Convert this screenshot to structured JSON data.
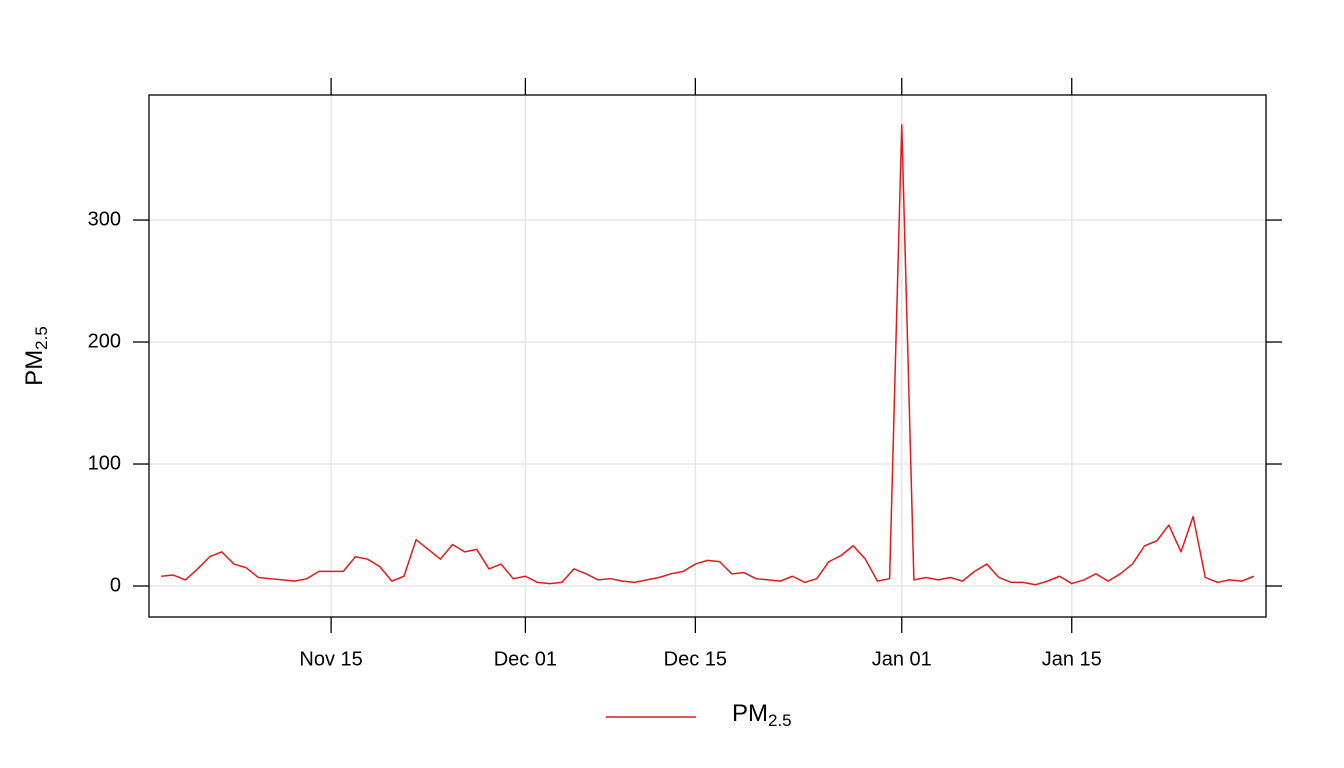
{
  "chart_data": {
    "type": "line",
    "ylabel": {
      "text": "PM",
      "subscript": "2.5"
    },
    "x": [
      "Nov 01",
      "Nov 02",
      "Nov 03",
      "Nov 04",
      "Nov 05",
      "Nov 06",
      "Nov 07",
      "Nov 08",
      "Nov 09",
      "Nov 10",
      "Nov 11",
      "Nov 12",
      "Nov 13",
      "Nov 14",
      "Nov 15",
      "Nov 16",
      "Nov 17",
      "Nov 18",
      "Nov 19",
      "Nov 20",
      "Nov 21",
      "Nov 22",
      "Nov 23",
      "Nov 24",
      "Nov 25",
      "Nov 26",
      "Nov 27",
      "Nov 28",
      "Nov 29",
      "Nov 30",
      "Dec 01",
      "Dec 02",
      "Dec 03",
      "Dec 04",
      "Dec 05",
      "Dec 06",
      "Dec 07",
      "Dec 08",
      "Dec 09",
      "Dec 10",
      "Dec 11",
      "Dec 12",
      "Dec 13",
      "Dec 14",
      "Dec 15",
      "Dec 16",
      "Dec 17",
      "Dec 18",
      "Dec 19",
      "Dec 20",
      "Dec 21",
      "Dec 22",
      "Dec 23",
      "Dec 24",
      "Dec 25",
      "Dec 26",
      "Dec 27",
      "Dec 28",
      "Dec 29",
      "Dec 30",
      "Dec 31",
      "Jan 01",
      "Jan 02",
      "Jan 03",
      "Jan 04",
      "Jan 05",
      "Jan 06",
      "Jan 07",
      "Jan 08",
      "Jan 09",
      "Jan 10",
      "Jan 11",
      "Jan 12",
      "Jan 13",
      "Jan 14",
      "Jan 15",
      "Jan 16",
      "Jan 17",
      "Jan 18",
      "Jan 19",
      "Jan 20",
      "Jan 21",
      "Jan 22",
      "Jan 23",
      "Jan 24",
      "Jan 25",
      "Jan 26",
      "Jan 27",
      "Jan 28",
      "Jan 29",
      "Jan 30"
    ],
    "series": [
      {
        "name": {
          "text": "PM",
          "subscript": "2.5"
        },
        "color": "#e31a1c",
        "values": [
          8,
          9,
          5,
          14,
          24,
          28,
          18,
          15,
          7,
          6,
          5,
          4,
          6,
          12,
          12,
          12,
          24,
          22,
          16,
          4,
          8,
          38,
          30,
          22,
          34,
          28,
          30,
          14,
          18,
          6,
          8,
          3,
          2,
          3,
          14,
          10,
          5,
          6,
          4,
          3,
          5,
          7,
          10,
          12,
          18,
          21,
          20,
          10,
          11,
          6,
          5,
          4,
          8,
          3,
          6,
          20,
          25,
          33,
          22,
          4,
          6,
          378,
          5,
          7,
          5,
          7,
          4,
          12,
          18,
          7,
          3,
          3,
          1,
          4,
          8,
          2,
          5,
          10,
          4,
          10,
          18,
          33,
          37,
          50,
          28,
          57,
          7,
          3,
          5,
          4,
          8
        ]
      }
    ],
    "xlim": [
      "Oct 31",
      "Jan 31"
    ],
    "xticks": [
      "Nov 15",
      "Dec 01",
      "Dec 15",
      "Jan 01",
      "Jan 15"
    ],
    "ylim": [
      -25.4,
      402.5
    ],
    "yticks": [
      0,
      100,
      200,
      300
    ],
    "grid": true,
    "legend": "bottom"
  }
}
